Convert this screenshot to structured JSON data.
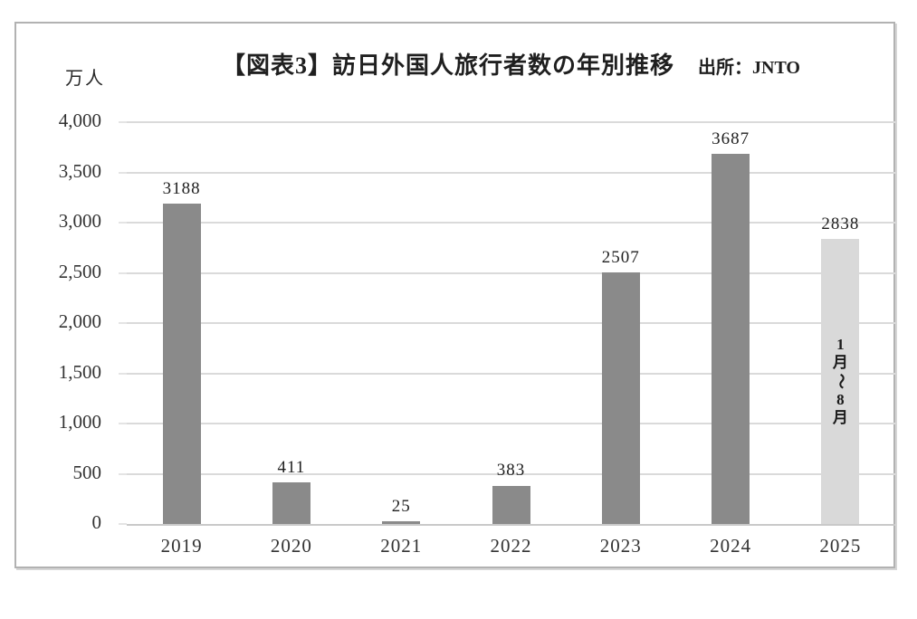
{
  "chart_data": {
    "type": "bar",
    "title": "【図表3】訪日外国人旅行者数の年別推移",
    "source_label": "出所：JNTO",
    "unit_label": "万人",
    "categories": [
      "2019",
      "2020",
      "2021",
      "2022",
      "2023",
      "2024",
      "2025"
    ],
    "values": [
      3188,
      411,
      25,
      383,
      2507,
      3687,
      2838
    ],
    "value_labels": [
      "3188",
      "411",
      "25",
      "383",
      "2507",
      "3687",
      "2838"
    ],
    "ylim": [
      0,
      4000
    ],
    "ytick_interval": 500,
    "ytick_labels": [
      "0",
      "500",
      "1,000",
      "1,500",
      "2,000",
      "2,500",
      "3,000",
      "3,500",
      "4,000"
    ],
    "grid": true,
    "legend": "none",
    "bar_color": "#8a8a8a",
    "highlight_index": 6,
    "highlight_bar_color": "#d9d9d9",
    "annotations": [
      {
        "category_index": 6,
        "text": "1月〜8月",
        "orientation": "vertical"
      }
    ]
  }
}
